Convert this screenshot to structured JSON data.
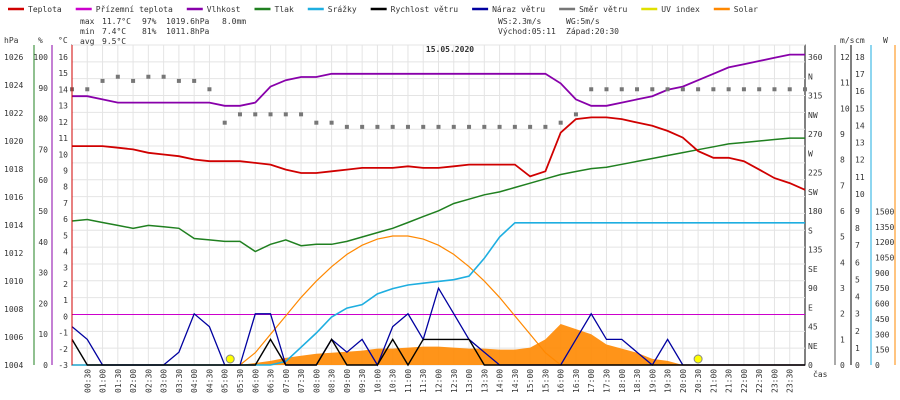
{
  "chart_data": {
    "type": "line",
    "title": "15.05.2020",
    "x_axis_label": "čas",
    "x_ticks": [
      "00:30",
      "01:00",
      "01:30",
      "02:00",
      "02:30",
      "03:00",
      "03:30",
      "04:00",
      "04:30",
      "05:00",
      "05:30",
      "06:00",
      "06:30",
      "07:00",
      "07:30",
      "08:00",
      "08:30",
      "09:00",
      "09:30",
      "10:00",
      "10:30",
      "11:00",
      "11:30",
      "12:00",
      "12:30",
      "13:00",
      "13:30",
      "14:00",
      "14:30",
      "15:00",
      "15:30",
      "16:00",
      "16:30",
      "17:00",
      "17:30",
      "18:00",
      "18:30",
      "19:00",
      "19:30",
      "20:00",
      "20:30",
      "21:00",
      "21:30",
      "22:00",
      "22:30",
      "23:00",
      "23:30"
    ],
    "legend": [
      {
        "label": "Teplota",
        "color": "#d00000"
      },
      {
        "label": "Přízemní teplota",
        "color": "#cc00cc"
      },
      {
        "label": "Vlhkost",
        "color": "#8800aa"
      },
      {
        "label": "Tlak",
        "color": "#208020"
      },
      {
        "label": "Srážky",
        "color": "#1eaee0"
      },
      {
        "label": "Rychlost větru",
        "color": "#000000"
      },
      {
        "label": "Náraz větru",
        "color": "#0000a0"
      },
      {
        "label": "Směr větru",
        "color": "#777777"
      },
      {
        "label": "UV index",
        "color": "#e0e000"
      },
      {
        "label": "Solar",
        "color": "#ff8800"
      }
    ],
    "stats": {
      "max": {
        "label": "max",
        "temp": "11.7°C",
        "hum": "97%",
        "press": "1019.6hPa",
        "rain": "8.0mm"
      },
      "min": {
        "label": "min",
        "temp": "7.4°C",
        "hum": "81%",
        "press": "1011.8hPa"
      },
      "avg": {
        "label": "avg",
        "temp": "9.5°C"
      }
    },
    "info": {
      "ws": "WS:2.3m/s",
      "wg": "WG:5m/s",
      "sunrise": "Východ:05:11",
      "sunset": "Západ:20:30"
    },
    "axes": {
      "hpa": {
        "unit": "hPa",
        "ticks": [
          "1026",
          "1024",
          "1022",
          "1020",
          "1018",
          "1016",
          "1014",
          "1012",
          "1010",
          "1008",
          "1006",
          "1004"
        ]
      },
      "pct": {
        "unit": "%",
        "ticks": [
          "100",
          "90",
          "80",
          "70",
          "60",
          "50",
          "40",
          "30",
          "20",
          "10",
          "0"
        ]
      },
      "c": {
        "unit": "°C",
        "ticks": [
          "16",
          "15",
          "14",
          "13",
          "12",
          "11",
          "10",
          "9",
          "8",
          "7",
          "6",
          "5",
          "4",
          "3",
          "2",
          "1",
          "0",
          "-1",
          "-2",
          "-3"
        ]
      },
      "dir": {
        "ticks": [
          "360",
          "N",
          "315",
          "NW",
          "270",
          "W",
          "225",
          "SW",
          "180",
          "S",
          "135",
          "SE",
          "90",
          "E",
          "45",
          "NE",
          "0"
        ]
      },
      "ms": {
        "unit": "m/s",
        "ticks": [
          "12",
          "11",
          "10",
          "9",
          "8",
          "7",
          "6",
          "5",
          "4",
          "3",
          "2",
          "1",
          "0"
        ]
      },
      "cm": {
        "unit": "cm",
        "ticks": [
          "18",
          "17",
          "16",
          "15",
          "14",
          "13",
          "12",
          "11",
          "10",
          "9",
          "8",
          "7",
          "6",
          "5",
          "4",
          "3",
          "2",
          "1",
          "0"
        ]
      },
      "w": {
        "unit": "W",
        "ticks": [
          "1500",
          "1350",
          "1200",
          "1050",
          "900",
          "750",
          "600",
          "450",
          "300",
          "150",
          "0"
        ]
      }
    },
    "series": {
      "time_hours": [
        0,
        0.5,
        1,
        1.5,
        2,
        2.5,
        3,
        3.5,
        4,
        4.5,
        5,
        5.5,
        6,
        6.5,
        7,
        7.5,
        8,
        8.5,
        9,
        9.5,
        10,
        10.5,
        11,
        11.5,
        12,
        12.5,
        13,
        13.5,
        14,
        14.5,
        15,
        15.5,
        16,
        16.5,
        17,
        17.5,
        18,
        18.5,
        19,
        19.5,
        20,
        20.5,
        21,
        21.5,
        22,
        22.5,
        23,
        23.5,
        24
      ],
      "temperature_c": [
        10,
        10,
        10,
        9.9,
        9.8,
        9.6,
        9.5,
        9.4,
        9.2,
        9.1,
        9.1,
        9.1,
        9,
        8.9,
        8.6,
        8.4,
        8.4,
        8.5,
        8.6,
        8.7,
        8.7,
        8.7,
        8.8,
        8.7,
        8.7,
        8.8,
        8.9,
        8.9,
        8.9,
        8.9,
        8.2,
        8.5,
        10.8,
        11.6,
        11.7,
        11.7,
        11.6,
        11.4,
        11.2,
        10.9,
        10.5,
        9.7,
        9.3,
        9.3,
        9.1,
        8.6,
        8.1,
        7.8,
        7.4
      ],
      "humidity_pct": [
        84,
        84,
        83,
        82,
        82,
        82,
        82,
        82,
        82,
        82,
        81,
        81,
        82,
        87,
        89,
        90,
        90,
        91,
        91,
        91,
        91,
        91,
        91,
        91,
        91,
        91,
        91,
        91,
        91,
        91,
        91,
        91,
        88,
        83,
        81,
        81,
        82,
        83,
        84,
        86,
        87,
        89,
        91,
        93,
        94,
        95,
        96,
        97,
        97
      ],
      "pressure_hpa": [
        1013.9,
        1014,
        1013.8,
        1013.6,
        1013.4,
        1013.6,
        1013.5,
        1013.4,
        1012.7,
        1012.6,
        1012.5,
        1012.5,
        1011.8,
        1012.3,
        1012.6,
        1012.2,
        1012.3,
        1012.3,
        1012.5,
        1012.8,
        1013.1,
        1013.4,
        1013.8,
        1014.2,
        1014.6,
        1015.1,
        1015.4,
        1015.7,
        1015.9,
        1016.2,
        1016.5,
        1016.8,
        1017.1,
        1017.3,
        1017.5,
        1017.6,
        1017.8,
        1018.0,
        1018.2,
        1018.4,
        1018.6,
        1018.8,
        1019.0,
        1019.2,
        1019.3,
        1019.4,
        1019.5,
        1019.6,
        1019.6
      ],
      "rain_mm": [
        0,
        0,
        0,
        0,
        0,
        0,
        0,
        0,
        0,
        0,
        0,
        0,
        0,
        0,
        0.2,
        1.0,
        1.8,
        2.7,
        3.2,
        3.4,
        4.0,
        4.3,
        4.5,
        4.6,
        4.7,
        4.8,
        5.0,
        6.0,
        7.2,
        8.0,
        8.0,
        8.0,
        8.0,
        8.0,
        8.0,
        8.0,
        8.0,
        8.0,
        8.0,
        8.0,
        8.0,
        8.0,
        8.0,
        8.0,
        8.0,
        8.0,
        8.0,
        8.0,
        8.0
      ],
      "wind_speed_ms": [
        1,
        0,
        0,
        0,
        0,
        0,
        0,
        0,
        0,
        0,
        0,
        0,
        0,
        1,
        0,
        0,
        0,
        1,
        0,
        0,
        0,
        1,
        0,
        1,
        1,
        1,
        1,
        0,
        0,
        0,
        0,
        0,
        0,
        0,
        0,
        0,
        0,
        0,
        0,
        0,
        0,
        0,
        0,
        0,
        0,
        0,
        0,
        0,
        0
      ],
      "wind_gust_ms": [
        1.5,
        1,
        0,
        0,
        0,
        0,
        0,
        0.5,
        2,
        1.5,
        0,
        0,
        2,
        2,
        0,
        0,
        0,
        1,
        0.5,
        1,
        0,
        1.5,
        2,
        1,
        3,
        2,
        1,
        0.5,
        0,
        0,
        0,
        0,
        0,
        1,
        2,
        1,
        1,
        0.5,
        0,
        1,
        0,
        0,
        0,
        0,
        0,
        0,
        0,
        0,
        0
      ],
      "wind_dir_deg": [
        330,
        330,
        340,
        345,
        340,
        345,
        345,
        340,
        340,
        330,
        290,
        300,
        300,
        300,
        300,
        300,
        290,
        290,
        285,
        285,
        285,
        285,
        285,
        285,
        285,
        285,
        285,
        285,
        285,
        285,
        285,
        285,
        290,
        300,
        330,
        330,
        330,
        330,
        330,
        330,
        330,
        330,
        330,
        330,
        330,
        330,
        330,
        330,
        330
      ],
      "solar_w": [
        0,
        0,
        0,
        0,
        0,
        0,
        0,
        0,
        0,
        0,
        0,
        0,
        20,
        40,
        70,
        90,
        110,
        120,
        130,
        140,
        160,
        160,
        170,
        180,
        180,
        170,
        160,
        160,
        150,
        150,
        170,
        250,
        400,
        350,
        300,
        200,
        160,
        120,
        60,
        40,
        0,
        0,
        0,
        0,
        0,
        0,
        0,
        0,
        0
      ],
      "solar_theoretical_w": [
        0,
        0,
        0,
        0,
        0,
        0,
        0,
        0,
        0,
        0,
        0,
        0,
        120,
        300,
        480,
        660,
        820,
        960,
        1080,
        1170,
        1230,
        1260,
        1260,
        1230,
        1170,
        1080,
        960,
        820,
        660,
        480,
        300,
        120,
        0,
        0,
        0,
        0,
        0,
        0,
        0,
        0,
        0,
        0,
        0,
        0,
        0,
        0,
        0,
        0,
        0
      ]
    }
  }
}
